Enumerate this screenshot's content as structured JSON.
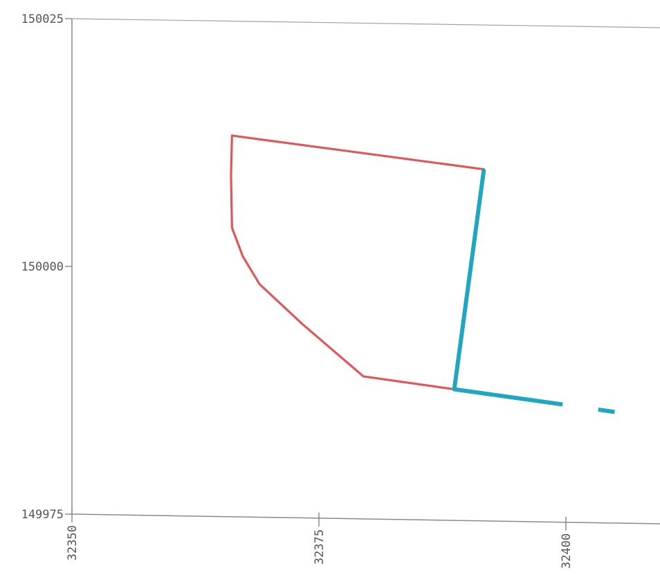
{
  "chart_data": {
    "type": "line",
    "title": "",
    "xlabel": "",
    "ylabel": "",
    "xlim": [
      32350,
      32402
    ],
    "ylim": [
      149975,
      150025
    ],
    "x_ticks": [
      "32350",
      "32375",
      "32400"
    ],
    "y_ticks": [
      "150025",
      "150000",
      "149975"
    ],
    "grid": false,
    "series": [
      {
        "color": "#e2555a",
        "style": "solid",
        "x": [
          32366.2,
          32391.7,
          32388.7,
          32379.5,
          32373.3,
          32369.0,
          32367.3,
          32366.2,
          32366.1,
          32366.2
        ],
        "y": [
          150013.2,
          150009.8,
          149987.6,
          149988.9,
          149994.2,
          149998.2,
          150001.0,
          150003.9,
          150009.2,
          150013.2
        ]
      },
      {
        "color": "#1fa6c0",
        "style": "solid",
        "x": [
          32391.7,
          32388.7,
          32398.0
        ],
        "y": [
          150009.8,
          149987.6,
          149986.3
        ]
      },
      {
        "color": "#1fa6c0",
        "style": "dashed",
        "x": [
          32398.0,
          32405.0
        ],
        "y": [
          149986.3,
          149985.3
        ]
      }
    ]
  }
}
